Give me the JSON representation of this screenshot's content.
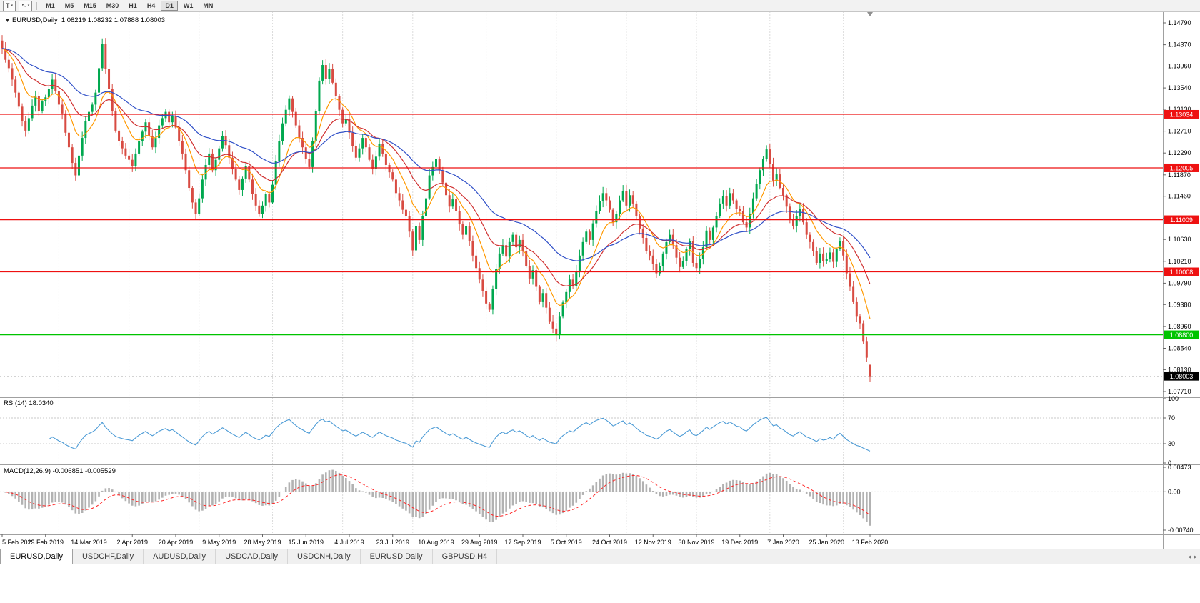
{
  "toolbar": {
    "template_button": "T",
    "timeframes": [
      "M1",
      "M5",
      "M15",
      "M30",
      "H1",
      "H4",
      "D1",
      "W1",
      "MN"
    ],
    "active_timeframe": "D1"
  },
  "chart": {
    "title_symbol": "EURUSD,Daily",
    "ohlc_text": "1.08219 1.08232 1.07888 1.08003",
    "current_price_label": "1.08003"
  },
  "price_axis": {
    "top_value": 1.1479,
    "bottom_value": 1.0771,
    "labels": [
      "1.14790",
      "1.14370",
      "1.13960",
      "1.13540",
      "1.13130",
      "1.12710",
      "1.12290",
      "1.11870",
      "1.11460",
      "1.11040",
      "1.10630",
      "1.10210",
      "1.09790",
      "1.09380",
      "1.08960",
      "1.08540",
      "1.08130",
      "1.07710"
    ]
  },
  "horizontal_lines": [
    {
      "price": 1.13034,
      "label": "1.13034",
      "color": "#ee1111"
    },
    {
      "price": 1.12005,
      "label": "1.12005",
      "color": "#ee1111"
    },
    {
      "price": 1.11009,
      "label": "1.11009",
      "color": "#ee1111"
    },
    {
      "price": 1.10008,
      "label": "1.10008",
      "color": "#ee1111"
    },
    {
      "price": 1.088,
      "label": "1.08800",
      "color": "#00c400"
    }
  ],
  "rsi_panel": {
    "label": "RSI(14) 18.0340",
    "line_color": "#4c9bd6",
    "levels": [
      70,
      30
    ],
    "axis_labels": [
      {
        "value": 100,
        "text": "100"
      },
      {
        "value": 70,
        "text": "70"
      },
      {
        "value": 30,
        "text": "30"
      },
      {
        "value": 0,
        "text": "0"
      }
    ]
  },
  "macd_panel": {
    "label": "MACD(12,26,9) -0.006851 -0.005529",
    "histogram_color": "#b2b2b2",
    "signal_color": "#ff2222",
    "range": [
      -0.0074,
      0.00473
    ],
    "axis_labels": [
      {
        "value": 0.00473,
        "text": "0.00473"
      },
      {
        "value": 0,
        "text": "0.00"
      },
      {
        "value": -0.0074,
        "text": "-0.00740"
      }
    ]
  },
  "time_axis": {
    "labels": [
      "5 Feb 2019",
      "23 Feb 2019",
      "14 Mar 2019",
      "2 Apr 2019",
      "20 Apr 2019",
      "9 May 2019",
      "28 May 2019",
      "15 Jun 2019",
      "4 Jul 2019",
      "23 Jul 2019",
      "10 Aug 2019",
      "29 Aug 2019",
      "17 Sep 2019",
      "5 Oct 2019",
      "24 Oct 2019",
      "12 Nov 2019",
      "30 Nov 2019",
      "19 Dec 2019",
      "7 Jan 2020",
      "25 Jan 2020",
      "13 Feb 2020"
    ]
  },
  "bottom_tabs": [
    {
      "label": "EURUSD,Daily",
      "active": true
    },
    {
      "label": "USDCHF,Daily",
      "active": false
    },
    {
      "label": "AUDUSD,Daily",
      "active": false
    },
    {
      "label": "USDCAD,Daily",
      "active": false
    },
    {
      "label": "USDCNH,Daily",
      "active": false
    },
    {
      "label": "EURUSD,Daily",
      "active": false
    },
    {
      "label": "GBPUSD,H4",
      "active": false
    }
  ],
  "chart_data": {
    "type": "candlestick",
    "symbol": "EURUSD",
    "timeframe": "Daily",
    "up_color": "#00a84f",
    "down_color": "#d84b42",
    "candles_per_label_interval": 13,
    "first_open": 1.1445,
    "closes": [
      1.143,
      1.1408,
      1.1392,
      1.137,
      1.1345,
      1.1318,
      1.129,
      1.1272,
      1.1296,
      1.132,
      1.1338,
      1.131,
      1.1328,
      1.1336,
      1.1352,
      1.137,
      1.1348,
      1.1322,
      1.1305,
      1.1268,
      1.124,
      1.121,
      1.1186,
      1.1224,
      1.1258,
      1.129,
      1.1308,
      1.1322,
      1.1345,
      1.1392,
      1.1438,
      1.139,
      1.1352,
      1.131,
      1.1272,
      1.1252,
      1.1238,
      1.1224,
      1.1216,
      1.1204,
      1.1228,
      1.1252,
      1.127,
      1.1288,
      1.1262,
      1.124,
      1.1258,
      1.1282,
      1.1296,
      1.1308,
      1.1288,
      1.13,
      1.1278,
      1.1252,
      1.1228,
      1.1196,
      1.1162,
      1.1134,
      1.1112,
      1.1142,
      1.1178,
      1.1206,
      1.1228,
      1.1196,
      1.1216,
      1.1238,
      1.1262,
      1.1244,
      1.122,
      1.1198,
      1.1178,
      1.1158,
      1.118,
      1.1204,
      1.1178,
      1.115,
      1.1128,
      1.1112,
      1.1128,
      1.115,
      1.1134,
      1.1168,
      1.1214,
      1.1252,
      1.1286,
      1.1312,
      1.1334,
      1.1308,
      1.1282,
      1.1258,
      1.124,
      1.1218,
      1.1202,
      1.1252,
      1.131,
      1.1368,
      1.1398,
      1.1372,
      1.139,
      1.1364,
      1.1338,
      1.1312,
      1.1286,
      1.1294,
      1.1268,
      1.1242,
      1.122,
      1.1238,
      1.1258,
      1.124,
      1.1216,
      1.1198,
      1.1222,
      1.1246,
      1.1228,
      1.1206,
      1.1192,
      1.1178,
      1.1152,
      1.1138,
      1.112,
      1.1108,
      1.1078,
      1.1042,
      1.1088,
      1.1062,
      1.1108,
      1.1142,
      1.1186,
      1.1202,
      1.1218,
      1.1196,
      1.1172,
      1.1148,
      1.1126,
      1.114,
      1.1118,
      1.1092,
      1.1072,
      1.1088,
      1.106,
      1.1032,
      1.1008,
      1.0986,
      1.0964,
      1.094,
      1.0928,
      1.0968,
      1.1006,
      1.1036,
      1.1052,
      1.103,
      1.1058,
      1.1072,
      1.1048,
      1.1062,
      1.104,
      1.1012,
      1.0988,
      1.1004,
      1.0972,
      1.0944,
      1.096,
      1.0932,
      1.0906,
      1.0892,
      1.088,
      1.0916,
      1.0942,
      1.0962,
      1.0986,
      1.0974,
      1.1002,
      1.1032,
      1.1058,
      1.1078,
      1.1062,
      1.1094,
      1.1118,
      1.1136,
      1.1152,
      1.1138,
      1.112,
      1.1096,
      1.1112,
      1.1138,
      1.1156,
      1.1128,
      1.1148,
      1.1132,
      1.1108,
      1.1084,
      1.1066,
      1.104,
      1.1032,
      1.1016,
      1.0998,
      1.1012,
      1.1036,
      1.1058,
      1.1072,
      1.1052,
      1.1028,
      1.101,
      1.1022,
      1.1044,
      1.106,
      1.1018,
      1.1008,
      1.1026,
      1.1048,
      1.108,
      1.1062,
      1.1086,
      1.1108,
      1.1132,
      1.1146,
      1.1128,
      1.1152,
      1.1138,
      1.1122,
      1.1118,
      1.1096,
      1.1086,
      1.1112,
      1.1142,
      1.117,
      1.1196,
      1.1218,
      1.1236,
      1.1208,
      1.1176,
      1.1188,
      1.1162,
      1.1148,
      1.1126,
      1.1102,
      1.1088,
      1.1108,
      1.1122,
      1.1096,
      1.1072,
      1.1058,
      1.104,
      1.1018,
      1.1036,
      1.1022,
      1.1026,
      1.1038,
      1.102,
      1.1044,
      1.106,
      1.1032,
      1.0998,
      1.0972,
      1.0944,
      1.0916,
      1.0902,
      1.0868,
      1.0836,
      1.08
    ],
    "last_candle": {
      "open": 1.08219,
      "high": 1.08232,
      "low": 1.07888,
      "close": 1.08003
    },
    "month_start_indices": [
      17,
      38,
      59,
      81,
      102,
      123,
      145,
      166,
      187,
      208,
      230,
      252
    ],
    "moving_averages": [
      {
        "name": "fast",
        "period": 10,
        "color": "#ff9900"
      },
      {
        "name": "medium",
        "period": 22,
        "color": "#d03030"
      },
      {
        "name": "slow",
        "period": 45,
        "color": "#3050c8"
      }
    ],
    "rsi": {
      "period": 14,
      "current": 18.034
    },
    "macd": {
      "fast": 12,
      "slow": 26,
      "signal": 9,
      "current_main": -0.006851,
      "current_signal": -0.005529
    }
  }
}
